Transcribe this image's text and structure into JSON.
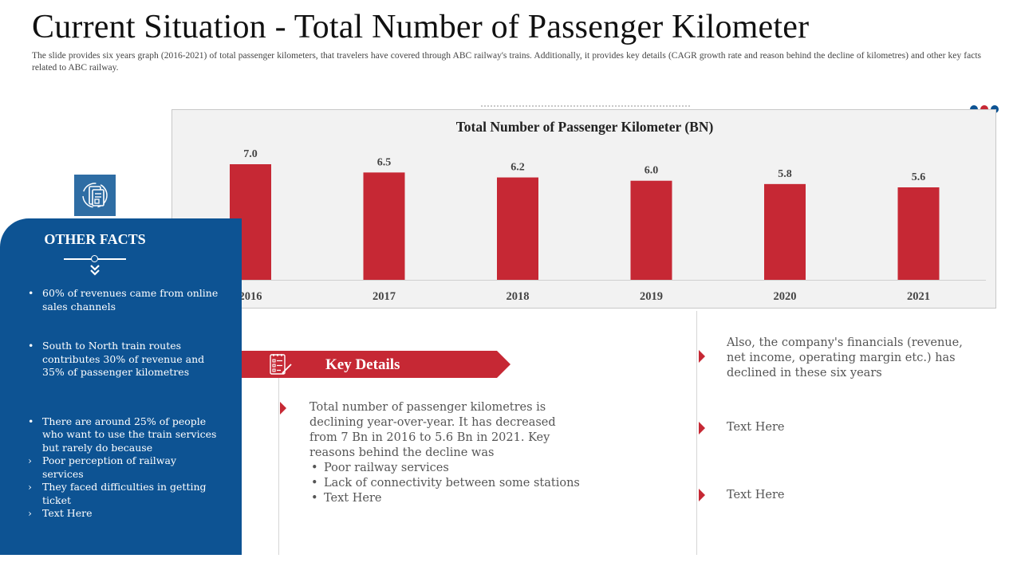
{
  "header": {
    "title": "Current Situation - Total Number of Passenger Kilometer",
    "subtitle": "The slide provides six years graph (2016-2021) of total passenger kilometers, that travelers have covered through ABC railway's trains. Additionally, it provides key details (CAGR growth rate and reason behind the decline of kilometres) and other key facts related to ABC railway."
  },
  "colors": {
    "accent_red": "#C62834",
    "brand_blue": "#0D5393",
    "dots": [
      "#0D5393",
      "#C62834",
      "#0D5393"
    ]
  },
  "chart_data": {
    "type": "bar",
    "title": "Total Number of Passenger Kilometer (BN)",
    "categories": [
      "2016",
      "2017",
      "2018",
      "2019",
      "2020",
      "2021"
    ],
    "values": [
      7.0,
      6.5,
      6.2,
      6.0,
      5.8,
      5.6
    ],
    "value_labels": [
      "7.0",
      "6.5",
      "6.2",
      "6.0",
      "5.8",
      "5.6"
    ],
    "xlabel": "",
    "ylabel": "",
    "ylim": [
      0,
      7
    ],
    "grid": false,
    "legend": "none",
    "bar_color": "#C62834"
  },
  "other_facts": {
    "title": "OTHER FACTS",
    "icon": "document-report-icon",
    "items": [
      "60% of revenues came from online sales channels",
      "South to North train routes contributes 30% of revenue and 35% of passenger kilometres",
      "There are around 25% of people who want to use the train services but rarely do because"
    ],
    "sub_items": [
      "Poor perception  of railway services",
      "They faced difficulties in getting  ticket",
      "Text Here"
    ]
  },
  "key_details": {
    "title": "Key Details",
    "icon": "checklist-icon",
    "paragraph": "Total number of passenger kilometres is declining year-over-year. It has decreased from 7 Bn in 2016 to 5.6 Bn in 2021. Key reasons behind the decline was",
    "bullets": [
      "Poor railway services",
      "Lack of connectivity between some stations",
      "Text Here"
    ]
  },
  "right_notes": [
    "Also, the company's financials (revenue, net income, operating margin etc.) has declined in these six years",
    "Text Here",
    "Text Here"
  ]
}
